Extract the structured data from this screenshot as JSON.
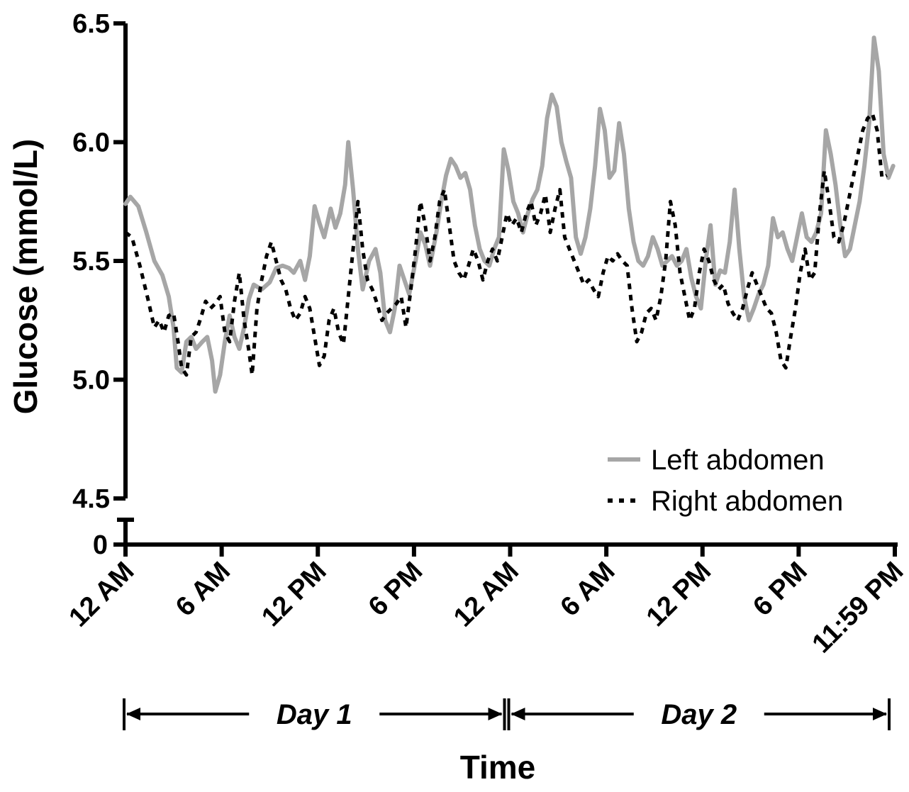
{
  "chart_data": {
    "type": "line",
    "title": "",
    "xlabel": "Time",
    "ylabel": "Glucose (mmol/L)",
    "ylim": [
      4.5,
      6.5
    ],
    "y_ticks": [
      "6.5",
      "6.0",
      "5.5",
      "5.0",
      "4.5"
    ],
    "y_zero_label": "0",
    "x_unit": "hours",
    "xlim": [
      0,
      48
    ],
    "x_ticks": [
      {
        "x": 0,
        "label": "12 AM"
      },
      {
        "x": 6,
        "label": "6 AM"
      },
      {
        "x": 12,
        "label": "12 PM"
      },
      {
        "x": 18,
        "label": "6 PM"
      },
      {
        "x": 24,
        "label": "12 AM"
      },
      {
        "x": 30,
        "label": "6 AM"
      },
      {
        "x": 36,
        "label": "12 PM"
      },
      {
        "x": 42,
        "label": "6 PM"
      },
      {
        "x": 48,
        "label": "11:59 PM"
      }
    ],
    "day_spans": [
      {
        "label": "Day 1",
        "start": 0,
        "end": 24
      },
      {
        "label": "Day 2",
        "start": 24,
        "end": 48
      }
    ],
    "legend_position": "bottom-right",
    "series": [
      {
        "name": "Left abdomen",
        "color": "#a6a6a6",
        "style": "solid",
        "points": [
          [
            0,
            5.74
          ],
          [
            0.3,
            5.77
          ],
          [
            0.8,
            5.73
          ],
          [
            1.3,
            5.62
          ],
          [
            1.8,
            5.5
          ],
          [
            2.3,
            5.44
          ],
          [
            2.7,
            5.35
          ],
          [
            3,
            5.22
          ],
          [
            3.2,
            5.05
          ],
          [
            3.5,
            5.03
          ],
          [
            3.8,
            5.16
          ],
          [
            4.1,
            5.18
          ],
          [
            4.4,
            5.13
          ],
          [
            4.8,
            5.16
          ],
          [
            5.1,
            5.18
          ],
          [
            5.4,
            5.08
          ],
          [
            5.6,
            4.95
          ],
          [
            5.9,
            5.02
          ],
          [
            6.2,
            5.16
          ],
          [
            6.5,
            5.27
          ],
          [
            6.8,
            5.18
          ],
          [
            7.1,
            5.13
          ],
          [
            7.4,
            5.22
          ],
          [
            7.7,
            5.34
          ],
          [
            8,
            5.4
          ],
          [
            8.5,
            5.38
          ],
          [
            9,
            5.41
          ],
          [
            9.4,
            5.47
          ],
          [
            9.8,
            5.48
          ],
          [
            10.2,
            5.47
          ],
          [
            10.5,
            5.45
          ],
          [
            10.9,
            5.5
          ],
          [
            11.2,
            5.42
          ],
          [
            11.5,
            5.52
          ],
          [
            11.8,
            5.73
          ],
          [
            12.1,
            5.66
          ],
          [
            12.4,
            5.6
          ],
          [
            12.8,
            5.72
          ],
          [
            13.1,
            5.64
          ],
          [
            13.4,
            5.7
          ],
          [
            13.7,
            5.82
          ],
          [
            13.9,
            6.0
          ],
          [
            14.2,
            5.8
          ],
          [
            14.5,
            5.55
          ],
          [
            14.8,
            5.38
          ],
          [
            15.2,
            5.5
          ],
          [
            15.6,
            5.55
          ],
          [
            15.9,
            5.45
          ],
          [
            16.2,
            5.25
          ],
          [
            16.5,
            5.2
          ],
          [
            16.8,
            5.3
          ],
          [
            17.1,
            5.48
          ],
          [
            17.4,
            5.42
          ],
          [
            17.7,
            5.36
          ],
          [
            18.1,
            5.5
          ],
          [
            18.4,
            5.62
          ],
          [
            18.7,
            5.57
          ],
          [
            19,
            5.48
          ],
          [
            19.4,
            5.62
          ],
          [
            19.7,
            5.75
          ],
          [
            20,
            5.86
          ],
          [
            20.3,
            5.93
          ],
          [
            20.6,
            5.9
          ],
          [
            20.9,
            5.85
          ],
          [
            21.2,
            5.87
          ],
          [
            21.5,
            5.8
          ],
          [
            21.8,
            5.65
          ],
          [
            22.1,
            5.55
          ],
          [
            22.4,
            5.5
          ],
          [
            22.7,
            5.48
          ],
          [
            23,
            5.55
          ],
          [
            23.3,
            5.6
          ],
          [
            23.6,
            5.97
          ],
          [
            23.9,
            5.88
          ],
          [
            24.2,
            5.75
          ],
          [
            24.5,
            5.7
          ],
          [
            24.8,
            5.62
          ],
          [
            25.1,
            5.7
          ],
          [
            25.4,
            5.76
          ],
          [
            25.7,
            5.8
          ],
          [
            26.0,
            5.9
          ],
          [
            26.3,
            6.1
          ],
          [
            26.6,
            6.2
          ],
          [
            26.9,
            6.15
          ],
          [
            27.2,
            6.0
          ],
          [
            27.5,
            5.92
          ],
          [
            27.8,
            5.85
          ],
          [
            28.1,
            5.6
          ],
          [
            28.4,
            5.53
          ],
          [
            28.7,
            5.6
          ],
          [
            29,
            5.72
          ],
          [
            29.3,
            5.9
          ],
          [
            29.6,
            6.14
          ],
          [
            29.9,
            6.05
          ],
          [
            30.2,
            5.85
          ],
          [
            30.5,
            5.88
          ],
          [
            30.8,
            6.08
          ],
          [
            31.1,
            5.95
          ],
          [
            31.4,
            5.72
          ],
          [
            31.7,
            5.58
          ],
          [
            32,
            5.5
          ],
          [
            32.3,
            5.48
          ],
          [
            32.6,
            5.52
          ],
          [
            32.9,
            5.6
          ],
          [
            33.2,
            5.55
          ],
          [
            33.5,
            5.48
          ],
          [
            33.8,
            5.5
          ],
          [
            34.1,
            5.52
          ],
          [
            34.4,
            5.48
          ],
          [
            34.7,
            5.5
          ],
          [
            35,
            5.55
          ],
          [
            35.3,
            5.43
          ],
          [
            35.6,
            5.35
          ],
          [
            35.9,
            5.3
          ],
          [
            36.2,
            5.5
          ],
          [
            36.5,
            5.65
          ],
          [
            36.8,
            5.4
          ],
          [
            37.1,
            5.46
          ],
          [
            37.4,
            5.45
          ],
          [
            37.7,
            5.58
          ],
          [
            38,
            5.8
          ],
          [
            38.3,
            5.55
          ],
          [
            38.6,
            5.35
          ],
          [
            38.9,
            5.25
          ],
          [
            39.2,
            5.3
          ],
          [
            39.5,
            5.36
          ],
          [
            39.8,
            5.4
          ],
          [
            40.1,
            5.48
          ],
          [
            40.4,
            5.68
          ],
          [
            40.7,
            5.6
          ],
          [
            41,
            5.62
          ],
          [
            41.3,
            5.55
          ],
          [
            41.6,
            5.5
          ],
          [
            41.9,
            5.6
          ],
          [
            42.2,
            5.7
          ],
          [
            42.5,
            5.6
          ],
          [
            42.8,
            5.58
          ],
          [
            43.1,
            5.62
          ],
          [
            43.4,
            5.7
          ],
          [
            43.7,
            6.05
          ],
          [
            44,
            5.95
          ],
          [
            44.3,
            5.82
          ],
          [
            44.6,
            5.65
          ],
          [
            44.9,
            5.52
          ],
          [
            45.2,
            5.55
          ],
          [
            45.5,
            5.65
          ],
          [
            45.8,
            5.75
          ],
          [
            46.1,
            5.9
          ],
          [
            46.4,
            6.08
          ],
          [
            46.7,
            6.44
          ],
          [
            47,
            6.3
          ],
          [
            47.3,
            5.95
          ],
          [
            47.6,
            5.85
          ],
          [
            47.9,
            5.9
          ]
        ]
      },
      {
        "name": "Right abdomen",
        "color": "#000000",
        "style": "dashed",
        "points": [
          [
            0,
            5.62
          ],
          [
            0.4,
            5.6
          ],
          [
            0.9,
            5.48
          ],
          [
            1.4,
            5.34
          ],
          [
            1.8,
            5.22
          ],
          [
            2.1,
            5.25
          ],
          [
            2.4,
            5.2
          ],
          [
            2.7,
            5.27
          ],
          [
            3,
            5.28
          ],
          [
            3.3,
            5.15
          ],
          [
            3.5,
            5.05
          ],
          [
            3.8,
            5.02
          ],
          [
            4.1,
            5.18
          ],
          [
            4.4,
            5.2
          ],
          [
            4.7,
            5.26
          ],
          [
            5.0,
            5.33
          ],
          [
            5.3,
            5.3
          ],
          [
            5.6,
            5.32
          ],
          [
            5.9,
            5.35
          ],
          [
            6.2,
            5.2
          ],
          [
            6.5,
            5.16
          ],
          [
            6.8,
            5.33
          ],
          [
            7.1,
            5.45
          ],
          [
            7.4,
            5.25
          ],
          [
            7.7,
            5.12
          ],
          [
            7.9,
            5.02
          ],
          [
            8.2,
            5.3
          ],
          [
            8.5,
            5.42
          ],
          [
            8.8,
            5.52
          ],
          [
            9.1,
            5.58
          ],
          [
            9.4,
            5.5
          ],
          [
            9.7,
            5.42
          ],
          [
            10,
            5.38
          ],
          [
            10.3,
            5.3
          ],
          [
            10.6,
            5.25
          ],
          [
            10.9,
            5.28
          ],
          [
            11.2,
            5.35
          ],
          [
            11.5,
            5.3
          ],
          [
            11.8,
            5.18
          ],
          [
            12.1,
            5.06
          ],
          [
            12.4,
            5.1
          ],
          [
            12.7,
            5.25
          ],
          [
            13,
            5.3
          ],
          [
            13.3,
            5.2
          ],
          [
            13.6,
            5.15
          ],
          [
            13.9,
            5.35
          ],
          [
            14.2,
            5.55
          ],
          [
            14.5,
            5.75
          ],
          [
            14.8,
            5.55
          ],
          [
            15.1,
            5.42
          ],
          [
            15.4,
            5.38
          ],
          [
            15.7,
            5.32
          ],
          [
            16,
            5.25
          ],
          [
            16.3,
            5.28
          ],
          [
            16.6,
            5.3
          ],
          [
            16.9,
            5.32
          ],
          [
            17.2,
            5.35
          ],
          [
            17.5,
            5.22
          ],
          [
            17.8,
            5.38
          ],
          [
            18.1,
            5.55
          ],
          [
            18.4,
            5.75
          ],
          [
            18.7,
            5.65
          ],
          [
            19,
            5.5
          ],
          [
            19.3,
            5.6
          ],
          [
            19.6,
            5.75
          ],
          [
            19.9,
            5.8
          ],
          [
            20.2,
            5.65
          ],
          [
            20.5,
            5.5
          ],
          [
            20.8,
            5.45
          ],
          [
            21.1,
            5.42
          ],
          [
            21.4,
            5.48
          ],
          [
            21.7,
            5.55
          ],
          [
            22,
            5.5
          ],
          [
            22.3,
            5.42
          ],
          [
            22.6,
            5.5
          ],
          [
            22.9,
            5.55
          ],
          [
            23.2,
            5.5
          ],
          [
            23.5,
            5.6
          ],
          [
            23.8,
            5.7
          ],
          [
            24.1,
            5.65
          ],
          [
            24.4,
            5.68
          ],
          [
            24.7,
            5.62
          ],
          [
            25,
            5.7
          ],
          [
            25.3,
            5.75
          ],
          [
            25.6,
            5.65
          ],
          [
            25.9,
            5.7
          ],
          [
            26.2,
            5.78
          ],
          [
            26.5,
            5.62
          ],
          [
            26.8,
            5.72
          ],
          [
            27.1,
            5.8
          ],
          [
            27.4,
            5.6
          ],
          [
            27.7,
            5.55
          ],
          [
            28,
            5.5
          ],
          [
            28.3,
            5.45
          ],
          [
            28.6,
            5.4
          ],
          [
            28.9,
            5.42
          ],
          [
            29.2,
            5.38
          ],
          [
            29.5,
            5.35
          ],
          [
            29.8,
            5.45
          ],
          [
            30.1,
            5.52
          ],
          [
            30.4,
            5.5
          ],
          [
            30.7,
            5.53
          ],
          [
            31,
            5.5
          ],
          [
            31.3,
            5.48
          ],
          [
            31.6,
            5.3
          ],
          [
            31.9,
            5.16
          ],
          [
            32.2,
            5.2
          ],
          [
            32.5,
            5.28
          ],
          [
            32.8,
            5.3
          ],
          [
            33.1,
            5.25
          ],
          [
            33.4,
            5.35
          ],
          [
            33.7,
            5.5
          ],
          [
            34,
            5.75
          ],
          [
            34.3,
            5.65
          ],
          [
            34.6,
            5.45
          ],
          [
            34.9,
            5.35
          ],
          [
            35.2,
            5.25
          ],
          [
            35.5,
            5.3
          ],
          [
            35.8,
            5.45
          ],
          [
            36.1,
            5.55
          ],
          [
            36.4,
            5.5
          ],
          [
            36.7,
            5.42
          ],
          [
            37,
            5.38
          ],
          [
            37.3,
            5.4
          ],
          [
            37.6,
            5.32
          ],
          [
            37.9,
            5.28
          ],
          [
            38.2,
            5.25
          ],
          [
            38.5,
            5.3
          ],
          [
            38.8,
            5.38
          ],
          [
            39.1,
            5.45
          ],
          [
            39.4,
            5.4
          ],
          [
            39.7,
            5.35
          ],
          [
            40,
            5.3
          ],
          [
            40.3,
            5.28
          ],
          [
            40.6,
            5.2
          ],
          [
            40.9,
            5.08
          ],
          [
            41.2,
            5.05
          ],
          [
            41.5,
            5.18
          ],
          [
            41.8,
            5.3
          ],
          [
            42.1,
            5.45
          ],
          [
            42.4,
            5.55
          ],
          [
            42.7,
            5.42
          ],
          [
            43,
            5.45
          ],
          [
            43.3,
            5.7
          ],
          [
            43.6,
            5.88
          ],
          [
            43.9,
            5.75
          ],
          [
            44.2,
            5.6
          ],
          [
            44.5,
            5.58
          ],
          [
            44.8,
            5.65
          ],
          [
            45.1,
            5.75
          ],
          [
            45.4,
            5.85
          ],
          [
            45.7,
            5.95
          ],
          [
            46,
            6.05
          ],
          [
            46.3,
            6.1
          ],
          [
            46.6,
            6.12
          ],
          [
            46.9,
            6.05
          ],
          [
            47.2,
            5.85
          ],
          [
            47.5,
            5.86
          ]
        ]
      }
    ]
  }
}
